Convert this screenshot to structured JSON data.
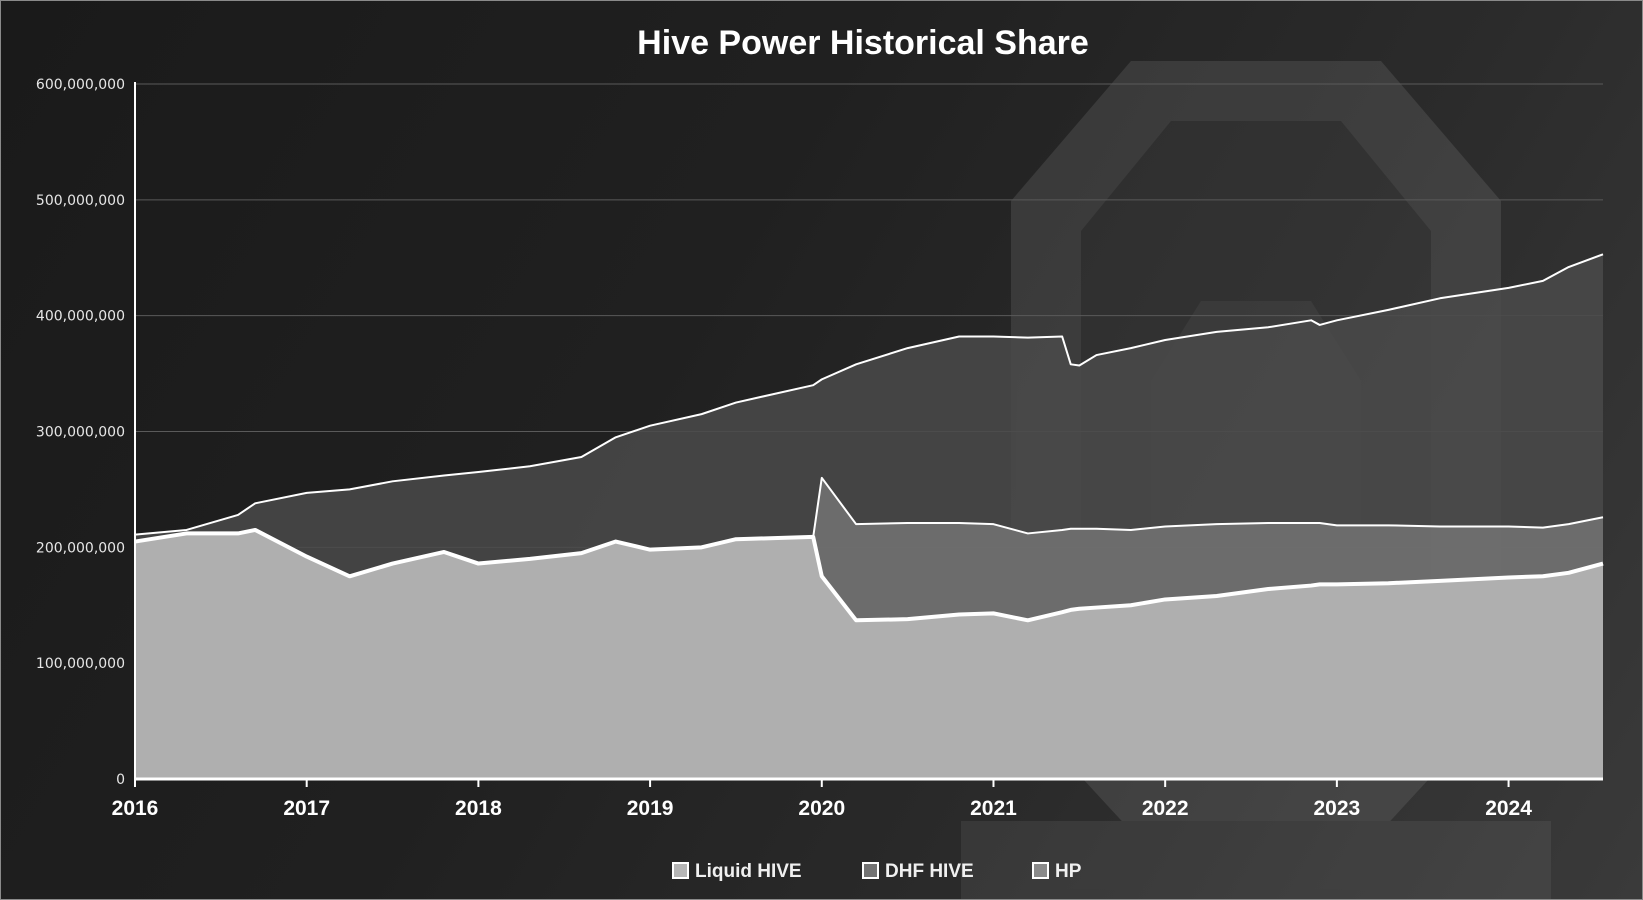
{
  "chart_data": {
    "type": "area",
    "title": "Hive Power Historical Share",
    "xlabel": "",
    "ylabel": "",
    "x_ticks": [
      "2016",
      "2017",
      "2018",
      "2019",
      "2020",
      "2021",
      "2022",
      "2023",
      "2024"
    ],
    "y_ticks": [
      "0",
      "100,000,000",
      "200,000,000",
      "300,000,000",
      "400,000,000",
      "500,000,000",
      "600,000,000"
    ],
    "ylim": [
      0,
      600000000
    ],
    "xlim": [
      2016.0,
      2024.55
    ],
    "grid": true,
    "legend_position": "bottom",
    "x": [
      2016.0,
      2016.3,
      2016.6,
      2016.7,
      2017.0,
      2017.25,
      2017.5,
      2017.8,
      2018.0,
      2018.3,
      2018.6,
      2018.8,
      2019.0,
      2019.3,
      2019.5,
      2019.95,
      2020.0,
      2020.2,
      2020.5,
      2020.8,
      2021.0,
      2021.2,
      2021.4,
      2021.45,
      2021.5,
      2021.6,
      2021.8,
      2022.0,
      2022.3,
      2022.6,
      2022.85,
      2022.9,
      2023.0,
      2023.3,
      2023.6,
      2024.0,
      2024.2,
      2024.35,
      2024.55
    ],
    "series": [
      {
        "name": "Liquid HIVE",
        "color": "#b5b5b5",
        "values": [
          205000000,
          212000000,
          212000000,
          215000000,
          192000000,
          175000000,
          186000000,
          196000000,
          186000000,
          190000000,
          195000000,
          205000000,
          198000000,
          200000000,
          207000000,
          209000000,
          175000000,
          137000000,
          138000000,
          142000000,
          143000000,
          137000000,
          144000000,
          146000000,
          147000000,
          148000000,
          150000000,
          155000000,
          158000000,
          164000000,
          167000000,
          168000000,
          168000000,
          169000000,
          171000000,
          174000000,
          175000000,
          178000000,
          186000000
        ]
      },
      {
        "name": "DHF HIVE",
        "color": "#6e6e6e",
        "values": [
          205000000,
          212000000,
          212000000,
          215000000,
          192000000,
          175000000,
          186000000,
          196000000,
          186000000,
          190000000,
          195000000,
          205000000,
          198000000,
          200000000,
          207000000,
          209000000,
          260000000,
          220000000,
          221000000,
          221000000,
          220000000,
          212000000,
          215000000,
          216000000,
          216000000,
          216000000,
          215000000,
          218000000,
          220000000,
          221000000,
          221000000,
          221000000,
          219000000,
          219000000,
          218000000,
          218000000,
          217000000,
          220000000,
          226000000
        ]
      },
      {
        "name": "HP",
        "color": "#a8a8a8",
        "values": [
          211000000,
          215000000,
          228000000,
          238000000,
          247000000,
          250000000,
          257000000,
          262000000,
          265000000,
          270000000,
          278000000,
          295000000,
          305000000,
          315000000,
          325000000,
          340000000,
          345000000,
          358000000,
          372000000,
          382000000,
          382000000,
          381000000,
          382000000,
          358000000,
          357000000,
          366000000,
          372000000,
          379000000,
          386000000,
          390000000,
          396000000,
          392000000,
          396000000,
          405000000,
          415000000,
          424000000,
          430000000,
          442000000,
          453000000
        ]
      }
    ]
  }
}
